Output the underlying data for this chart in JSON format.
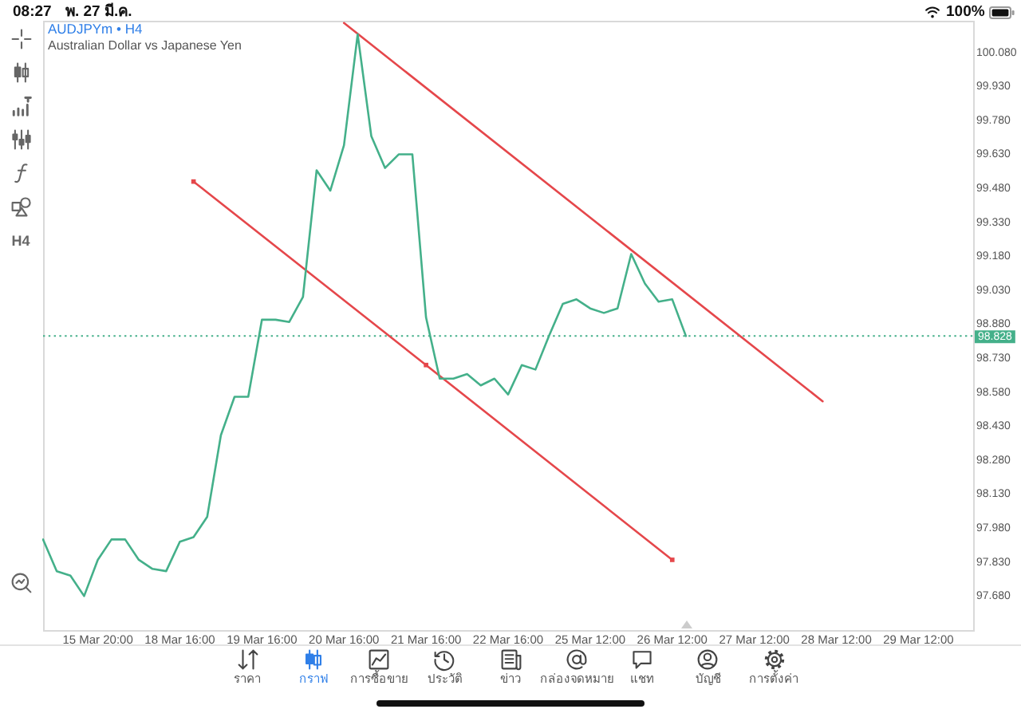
{
  "chart_data": {
    "type": "line",
    "title": "AUDJPYm • H4",
    "subtitle": "Australian Dollar vs Japanese Yen",
    "categories": [
      null,
      null,
      null,
      null,
      "15 Mar 20:00",
      null,
      null,
      null,
      null,
      null,
      "18 Mar 16:00",
      null,
      null,
      null,
      null,
      null,
      "19 Mar 16:00",
      null,
      null,
      null,
      null,
      null,
      "20 Mar 16:00",
      null,
      null,
      null,
      null,
      null,
      "21 Mar 16:00",
      null,
      null,
      null,
      null,
      null,
      "22 Mar 16:00",
      null,
      null,
      null,
      null,
      null,
      "25 Mar 12:00",
      null,
      null,
      null,
      null,
      null,
      "26 Mar 12:00",
      null,
      null,
      null,
      null,
      null,
      "27 Mar 12:00",
      null,
      null,
      null,
      null,
      null,
      "28 Mar 12:00",
      null,
      null,
      null,
      null,
      null,
      "29 Mar 12:00",
      null,
      null,
      null,
      null
    ],
    "series": [
      {
        "color": "#44b08a",
        "marker": "none",
        "values": [
          97.93,
          97.79,
          97.77,
          97.68,
          97.84,
          97.93,
          97.93,
          97.84,
          97.8,
          97.79,
          97.92,
          97.94,
          98.03,
          98.39,
          98.56,
          98.56,
          98.9,
          98.9,
          98.89,
          99.0,
          99.56,
          99.47,
          99.67,
          100.16,
          99.71,
          99.57,
          99.63,
          99.63,
          98.91,
          98.64,
          98.64,
          98.66,
          98.61,
          98.64,
          98.57,
          98.7,
          98.68,
          98.83,
          98.97,
          98.99,
          98.95,
          98.93,
          98.95,
          99.19,
          99.06,
          98.98,
          98.99,
          98.828,
          null,
          null,
          null,
          null,
          null,
          null,
          null,
          null,
          null,
          null,
          null,
          null,
          null,
          null,
          null,
          null,
          null,
          null,
          null,
          null,
          null
        ]
      },
      {
        "type": "line",
        "color": "#e5474b",
        "marker": "square",
        "values": [
          null,
          null,
          null,
          null,
          null,
          null,
          null,
          null,
          null,
          null,
          null,
          99.51,
          null,
          null,
          null,
          null,
          null,
          null,
          null,
          null,
          null,
          null,
          null,
          null,
          null,
          null,
          null,
          null,
          98.7,
          null,
          null,
          null,
          null,
          null,
          null,
          null,
          null,
          null,
          null,
          null,
          null,
          null,
          null,
          null,
          null,
          null,
          97.84,
          null,
          null,
          null,
          null,
          null,
          null,
          null,
          null,
          null,
          null,
          null,
          null,
          null,
          null,
          null,
          null,
          null,
          null,
          null,
          null,
          null,
          null
        ]
      },
      {
        "type": "line",
        "color": "#e5474b",
        "marker": "none",
        "values": [
          null,
          null,
          null,
          null,
          null,
          null,
          null,
          null,
          null,
          null,
          null,
          null,
          null,
          null,
          null,
          null,
          null,
          null,
          null,
          null,
          null,
          null,
          100.21,
          null,
          null,
          null,
          null,
          null,
          null,
          null,
          null,
          null,
          null,
          null,
          null,
          null,
          null,
          null,
          null,
          null,
          null,
          null,
          null,
          null,
          null,
          null,
          null,
          null,
          null,
          null,
          null,
          null,
          null,
          null,
          null,
          null,
          null,
          98.54,
          null,
          null,
          null,
          null,
          null,
          null,
          null,
          null,
          null,
          null,
          null
        ]
      }
    ],
    "ylim": [
      97.53,
      100.22
    ],
    "yticks": [
      {
        "value": 97.68,
        "label": "97.680"
      },
      {
        "value": 97.83,
        "label": "97.830"
      },
      {
        "value": 97.98,
        "label": "97.980"
      },
      {
        "value": 98.13,
        "label": "98.130"
      },
      {
        "value": 98.28,
        "label": "98.280"
      },
      {
        "value": 98.43,
        "label": "98.430"
      },
      {
        "value": 98.58,
        "label": "98.580"
      },
      {
        "value": 98.73,
        "label": "98.730"
      },
      {
        "value": 98.88,
        "label": "98.880"
      },
      {
        "value": 99.03,
        "label": "99.030"
      },
      {
        "value": 99.18,
        "label": "99.180"
      },
      {
        "value": 99.33,
        "label": "99.330"
      },
      {
        "value": 99.48,
        "label": "99.480"
      },
      {
        "value": 99.63,
        "label": "99.630"
      },
      {
        "value": 99.78,
        "label": "99.780"
      },
      {
        "value": 99.93,
        "label": "99.930"
      },
      {
        "value": 100.08,
        "label": "100.080"
      }
    ],
    "ref_lines": [
      {
        "axis": "y",
        "value": 98.828,
        "label": "98.828",
        "color": "#44b08a",
        "line_style": "dotted"
      }
    ],
    "annotations": [
      "08:27",
      "พ. 27 มี.ค.",
      "100%",
      "H4",
      "ราคา",
      "กราฟ",
      "การซื้อขาย",
      "ประวัติ",
      "ข่าว",
      "กล่องจดหมาย",
      "แชท",
      "บัญชี",
      "การตั้งค่า"
    ]
  }
}
